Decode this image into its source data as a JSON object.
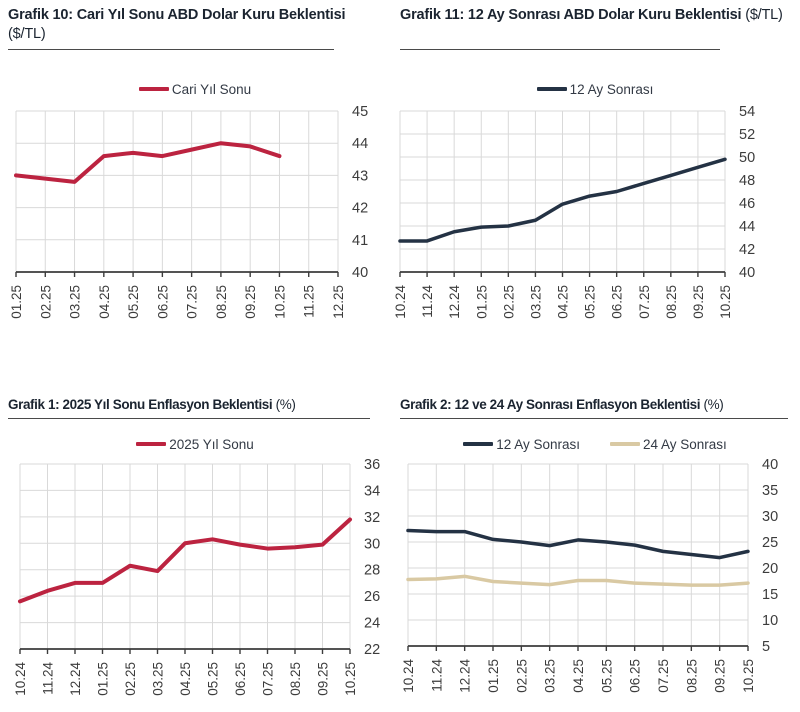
{
  "palette": {
    "red": "#bc2340",
    "navy": "#243244",
    "tan": "#d9c9a3",
    "gridline": "#d9d9d9",
    "axis": "#3c3c3c",
    "tick_text": "#3c3c3c",
    "title_text": "#1b2430"
  },
  "chart_data": [
    {
      "id": "grafik-10",
      "type": "line",
      "title": "Grafik 10: Cari Yıl Sonu ABD Dolar Kuru Beklentisi",
      "title_unit": "($/TL)",
      "legend_position": "top",
      "y_axis_side": "right",
      "grid": true,
      "categories": [
        "01.25",
        "02.25",
        "03.25",
        "04.25",
        "05.25",
        "06.25",
        "07.25",
        "08.25",
        "09.25",
        "10.25",
        "11.25",
        "12.25"
      ],
      "series": [
        {
          "name": "Cari Yıl Sonu",
          "color": "#bc2340",
          "values": [
            43.0,
            42.9,
            42.8,
            43.6,
            43.7,
            43.6,
            43.8,
            44.0,
            43.9,
            43.6,
            null,
            null
          ]
        }
      ],
      "ylim": [
        40,
        45
      ],
      "yticks": [
        40,
        41,
        42,
        43,
        44,
        45
      ]
    },
    {
      "id": "grafik-11",
      "type": "line",
      "title": "Grafik 11: 12 Ay Sonrası ABD Dolar Kuru Beklentisi",
      "title_unit": "($/TL)",
      "legend_position": "top",
      "y_axis_side": "right",
      "grid": true,
      "categories": [
        "10.24",
        "11.24",
        "12.24",
        "01.25",
        "02.25",
        "03.25",
        "04.25",
        "05.25",
        "06.25",
        "07.25",
        "08.25",
        "09.25",
        "10.25"
      ],
      "series": [
        {
          "name": "12 Ay Sonrası",
          "color": "#243244",
          "values": [
            42.7,
            42.7,
            43.5,
            43.9,
            44.0,
            44.5,
            45.9,
            46.6,
            47.0,
            47.7,
            48.4,
            49.1,
            49.8
          ]
        }
      ],
      "ylim": [
        40,
        54
      ],
      "yticks": [
        40,
        42,
        44,
        46,
        48,
        50,
        52,
        54
      ]
    },
    {
      "id": "grafik-1",
      "type": "line",
      "title": "Grafik 1: 2025 Yıl Sonu Enflasyon Beklentisi",
      "title_unit": "(%)",
      "legend_position": "top",
      "y_axis_side": "right",
      "grid": true,
      "categories": [
        "10.24",
        "11.24",
        "12.24",
        "01.25",
        "02.25",
        "03.25",
        "04.25",
        "05.25",
        "06.25",
        "07.25",
        "08.25",
        "09.25",
        "10.25"
      ],
      "series": [
        {
          "name": "2025 Yıl Sonu",
          "color": "#bc2340",
          "values": [
            25.6,
            26.4,
            27.0,
            27.0,
            28.3,
            27.9,
            30.0,
            30.3,
            29.9,
            29.6,
            29.7,
            29.9,
            31.8
          ]
        }
      ],
      "ylim": [
        22,
        36
      ],
      "yticks": [
        22,
        24,
        26,
        28,
        30,
        32,
        34,
        36
      ]
    },
    {
      "id": "grafik-2",
      "type": "line",
      "title": "Grafik 2: 12 ve 24 Ay Sonrası Enflasyon Beklentisi",
      "title_unit": "(%)",
      "legend_position": "top",
      "y_axis_side": "right",
      "grid": true,
      "categories": [
        "10.24",
        "11.24",
        "12.24",
        "01.25",
        "02.25",
        "03.25",
        "04.25",
        "05.25",
        "06.25",
        "07.25",
        "08.25",
        "09.25",
        "10.25"
      ],
      "series": [
        {
          "name": "12 Ay Sonrası",
          "color": "#243244",
          "values": [
            27.2,
            27.0,
            27.0,
            25.5,
            25.0,
            24.3,
            25.4,
            25.0,
            24.4,
            23.2,
            22.6,
            22.0,
            23.2
          ]
        },
        {
          "name": "24 Ay Sonrası",
          "color": "#d9c9a3",
          "values": [
            17.8,
            17.9,
            18.4,
            17.4,
            17.1,
            16.8,
            17.6,
            17.6,
            17.1,
            16.9,
            16.7,
            16.7,
            17.1
          ]
        }
      ],
      "ylim": [
        5,
        40
      ],
      "yticks": [
        5,
        10,
        15,
        20,
        25,
        30,
        35,
        40
      ]
    }
  ]
}
